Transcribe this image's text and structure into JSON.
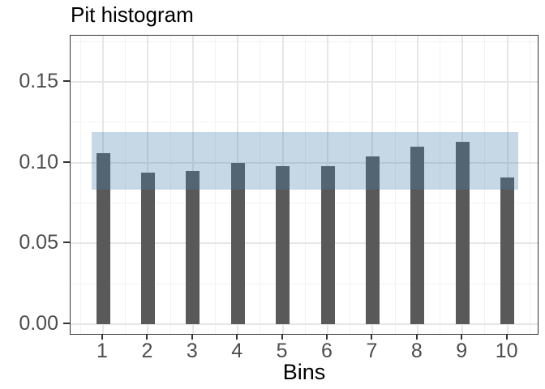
{
  "chart_data": {
    "type": "bar",
    "title": "Pit histogram",
    "xlabel": "Bins",
    "ylabel": "",
    "categories": [
      "1",
      "2",
      "3",
      "4",
      "5",
      "6",
      "7",
      "8",
      "9",
      "10"
    ],
    "values": [
      0.106,
      0.094,
      0.095,
      0.1,
      0.098,
      0.098,
      0.104,
      0.11,
      0.113,
      0.091
    ],
    "y_tick_labels": [
      "0.00",
      "0.05",
      "0.10",
      "0.15"
    ],
    "y_tick_values": [
      0,
      0.05,
      0.1,
      0.15
    ],
    "ylim": [
      0,
      0.179
    ],
    "grid": "major+minor",
    "legend_position": "none",
    "bar_color": "#595959",
    "band": {
      "ymin": 0.083,
      "ymax": 0.119,
      "xmin": 0.75,
      "xmax": 10.25,
      "color": "#4780AE",
      "opacity": 0.31,
      "name": "uniformity-confidence-band"
    }
  }
}
